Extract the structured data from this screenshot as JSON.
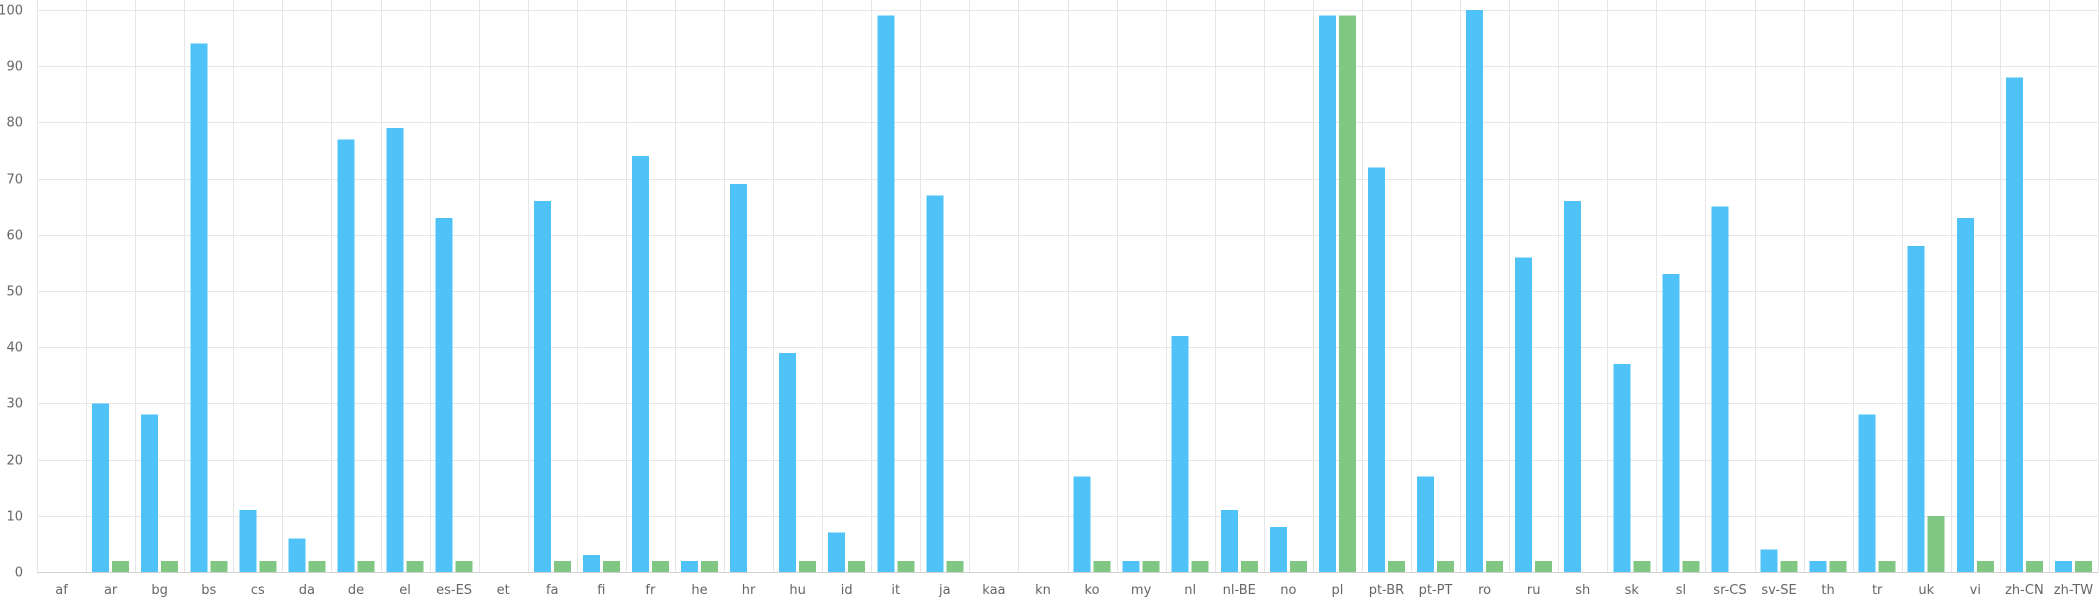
{
  "chart_data": {
    "type": "bar",
    "categories": [
      "af",
      "ar",
      "bg",
      "bs",
      "cs",
      "da",
      "de",
      "el",
      "es-ES",
      "et",
      "fa",
      "fi",
      "fr",
      "he",
      "hr",
      "hu",
      "id",
      "it",
      "ja",
      "kaa",
      "kn",
      "ko",
      "my",
      "nl",
      "nl-BE",
      "no",
      "pl",
      "pt-BR",
      "pt-PT",
      "ro",
      "ru",
      "sh",
      "sk",
      "sl",
      "sr-CS",
      "sv-SE",
      "th",
      "tr",
      "uk",
      "vi",
      "zh-CN",
      "zh-TW"
    ],
    "series": [
      {
        "color": "#4fc3f7",
        "values": [
          0,
          30,
          28,
          94,
          11,
          6,
          77,
          79,
          63,
          0,
          66,
          3,
          74,
          2,
          69,
          39,
          7,
          99,
          67,
          0,
          0,
          17,
          2,
          42,
          11,
          8,
          99,
          72,
          17,
          100,
          56,
          66,
          37,
          53,
          65,
          4,
          2,
          28,
          58,
          63,
          88,
          2
        ]
      },
      {
        "color": "#81c784",
        "values": [
          0,
          2,
          2,
          2,
          2,
          2,
          2,
          2,
          2,
          0,
          2,
          2,
          2,
          2,
          0,
          2,
          2,
          2,
          2,
          0,
          0,
          2,
          2,
          2,
          2,
          2,
          99,
          2,
          2,
          2,
          2,
          0,
          2,
          2,
          0,
          2,
          2,
          2,
          10,
          2,
          2,
          2
        ]
      }
    ],
    "ylim": [
      0,
      100
    ],
    "yticks": [
      "0",
      "10",
      "20",
      "30",
      "40",
      "50",
      "60",
      "70",
      "80",
      "90",
      "100"
    ],
    "grid": true,
    "title": "",
    "xlabel": "",
    "ylabel": ""
  }
}
